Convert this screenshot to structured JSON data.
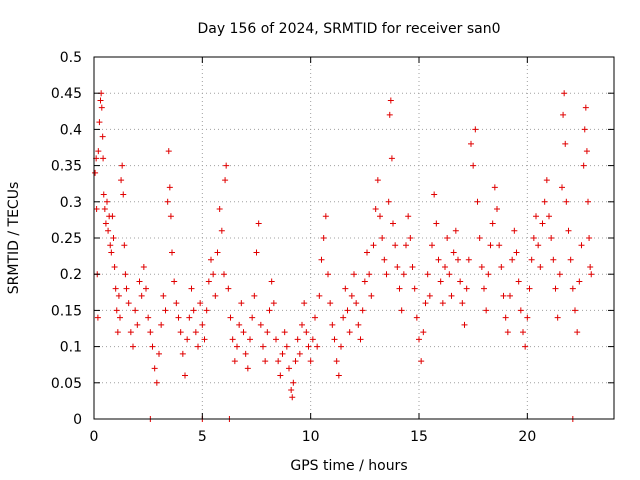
{
  "chart_data": {
    "type": "scatter",
    "title": "Day 156 of 2024, SRMTID for receiver san0",
    "xlabel": "GPS time / hours",
    "ylabel": "SRMTID / TECUs",
    "xlim": [
      0,
      24
    ],
    "ylim": [
      0,
      0.5
    ],
    "x_ticks": [
      0,
      5,
      10,
      15,
      20
    ],
    "x_tick_labels": [
      "0",
      "5",
      "10",
      "15",
      "20"
    ],
    "y_ticks": [
      0,
      0.05,
      0.1,
      0.15,
      0.2,
      0.25,
      0.3,
      0.35,
      0.4,
      0.45,
      0.5
    ],
    "y_tick_labels": [
      "0",
      "0.05",
      "0.1",
      "0.15",
      "0.2",
      "0.25",
      "0.3",
      "0.35",
      "0.4",
      "0.45",
      "0.5"
    ],
    "grid": true,
    "marker": "plus",
    "color": "#e00000",
    "series": [
      {
        "name": "SRMTID",
        "points": [
          [
            0.05,
            0.34
          ],
          [
            0.1,
            0.36
          ],
          [
            0.12,
            0.29
          ],
          [
            0.15,
            0.2
          ],
          [
            0.18,
            0.14
          ],
          [
            0.2,
            0.37
          ],
          [
            0.25,
            0.41
          ],
          [
            0.3,
            0.44
          ],
          [
            0.33,
            0.45
          ],
          [
            0.36,
            0.43
          ],
          [
            0.4,
            0.39
          ],
          [
            0.42,
            0.36
          ],
          [
            0.45,
            0.31
          ],
          [
            0.5,
            0.29
          ],
          [
            0.55,
            0.27
          ],
          [
            0.6,
            0.3
          ],
          [
            0.65,
            0.26
          ],
          [
            0.7,
            0.28
          ],
          [
            0.75,
            0.24
          ],
          [
            0.8,
            0.23
          ],
          [
            0.85,
            0.28
          ],
          [
            0.9,
            0.25
          ],
          [
            0.95,
            0.21
          ],
          [
            1.0,
            0.18
          ],
          [
            1.05,
            0.15
          ],
          [
            1.1,
            0.12
          ],
          [
            1.15,
            0.17
          ],
          [
            1.2,
            0.14
          ],
          [
            1.25,
            0.33
          ],
          [
            1.3,
            0.35
          ],
          [
            1.35,
            0.31
          ],
          [
            1.4,
            0.24
          ],
          [
            1.45,
            0.2
          ],
          [
            1.5,
            0.18
          ],
          [
            1.6,
            0.16
          ],
          [
            1.7,
            0.12
          ],
          [
            1.8,
            0.1
          ],
          [
            1.9,
            0.15
          ],
          [
            2.0,
            0.13
          ],
          [
            2.1,
            0.19
          ],
          [
            2.2,
            0.17
          ],
          [
            2.3,
            0.21
          ],
          [
            2.4,
            0.18
          ],
          [
            2.5,
            0.14
          ],
          [
            2.6,
            0.12
          ],
          [
            2.7,
            0.1
          ],
          [
            2.8,
            0.07
          ],
          [
            2.9,
            0.05
          ],
          [
            3.0,
            0.09
          ],
          [
            3.1,
            0.13
          ],
          [
            3.2,
            0.17
          ],
          [
            3.3,
            0.15
          ],
          [
            3.4,
            0.3
          ],
          [
            3.45,
            0.37
          ],
          [
            3.5,
            0.32
          ],
          [
            3.55,
            0.28
          ],
          [
            3.6,
            0.23
          ],
          [
            3.7,
            0.19
          ],
          [
            3.8,
            0.16
          ],
          [
            3.9,
            0.14
          ],
          [
            4.0,
            0.12
          ],
          [
            4.1,
            0.09
          ],
          [
            4.2,
            0.06
          ],
          [
            4.3,
            0.11
          ],
          [
            4.4,
            0.14
          ],
          [
            4.5,
            0.18
          ],
          [
            4.6,
            0.15
          ],
          [
            4.7,
            0.12
          ],
          [
            4.8,
            0.1
          ],
          [
            4.9,
            0.16
          ],
          [
            5.0,
            0.13
          ],
          [
            5.1,
            0.11
          ],
          [
            5.2,
            0.15
          ],
          [
            5.3,
            0.19
          ],
          [
            5.4,
            0.22
          ],
          [
            5.5,
            0.2
          ],
          [
            5.6,
            0.17
          ],
          [
            5.7,
            0.23
          ],
          [
            5.8,
            0.29
          ],
          [
            5.9,
            0.26
          ],
          [
            6.0,
            0.2
          ],
          [
            6.05,
            0.33
          ],
          [
            6.1,
            0.35
          ],
          [
            6.2,
            0.18
          ],
          [
            6.3,
            0.14
          ],
          [
            6.4,
            0.11
          ],
          [
            6.5,
            0.08
          ],
          [
            6.6,
            0.1
          ],
          [
            6.7,
            0.13
          ],
          [
            6.8,
            0.16
          ],
          [
            6.9,
            0.12
          ],
          [
            7.0,
            0.09
          ],
          [
            7.1,
            0.07
          ],
          [
            7.2,
            0.11
          ],
          [
            7.3,
            0.14
          ],
          [
            7.4,
            0.17
          ],
          [
            7.5,
            0.23
          ],
          [
            7.6,
            0.27
          ],
          [
            7.7,
            0.13
          ],
          [
            7.8,
            0.1
          ],
          [
            7.9,
            0.08
          ],
          [
            8.0,
            0.12
          ],
          [
            8.1,
            0.15
          ],
          [
            8.2,
            0.19
          ],
          [
            8.3,
            0.16
          ],
          [
            8.4,
            0.11
          ],
          [
            8.5,
            0.08
          ],
          [
            8.6,
            0.06
          ],
          [
            8.7,
            0.09
          ],
          [
            8.8,
            0.12
          ],
          [
            8.9,
            0.1
          ],
          [
            9.0,
            0.07
          ],
          [
            9.1,
            0.04
          ],
          [
            9.15,
            0.03
          ],
          [
            9.2,
            0.05
          ],
          [
            9.3,
            0.08
          ],
          [
            9.4,
            0.11
          ],
          [
            9.5,
            0.09
          ],
          [
            9.6,
            0.13
          ],
          [
            9.7,
            0.16
          ],
          [
            9.8,
            0.12
          ],
          [
            9.9,
            0.1
          ],
          [
            10.0,
            0.08
          ],
          [
            10.1,
            0.11
          ],
          [
            10.2,
            0.14
          ],
          [
            10.3,
            0.1
          ],
          [
            10.4,
            0.17
          ],
          [
            10.5,
            0.22
          ],
          [
            10.6,
            0.25
          ],
          [
            10.7,
            0.28
          ],
          [
            10.8,
            0.2
          ],
          [
            10.9,
            0.16
          ],
          [
            11.0,
            0.13
          ],
          [
            11.1,
            0.11
          ],
          [
            11.2,
            0.08
          ],
          [
            11.3,
            0.06
          ],
          [
            11.4,
            0.1
          ],
          [
            11.5,
            0.14
          ],
          [
            11.6,
            0.18
          ],
          [
            11.7,
            0.15
          ],
          [
            11.8,
            0.12
          ],
          [
            11.9,
            0.17
          ],
          [
            12.0,
            0.2
          ],
          [
            12.1,
            0.16
          ],
          [
            12.2,
            0.13
          ],
          [
            12.3,
            0.11
          ],
          [
            12.4,
            0.15
          ],
          [
            12.5,
            0.19
          ],
          [
            12.6,
            0.23
          ],
          [
            12.7,
            0.2
          ],
          [
            12.8,
            0.17
          ],
          [
            12.9,
            0.24
          ],
          [
            13.0,
            0.29
          ],
          [
            13.1,
            0.33
          ],
          [
            13.2,
            0.28
          ],
          [
            13.3,
            0.25
          ],
          [
            13.4,
            0.22
          ],
          [
            13.5,
            0.2
          ],
          [
            13.6,
            0.3
          ],
          [
            13.65,
            0.42
          ],
          [
            13.7,
            0.44
          ],
          [
            13.75,
            0.36
          ],
          [
            13.8,
            0.27
          ],
          [
            13.9,
            0.24
          ],
          [
            14.0,
            0.21
          ],
          [
            14.1,
            0.18
          ],
          [
            14.2,
            0.15
          ],
          [
            14.3,
            0.2
          ],
          [
            14.4,
            0.24
          ],
          [
            14.5,
            0.28
          ],
          [
            14.6,
            0.25
          ],
          [
            14.7,
            0.21
          ],
          [
            14.8,
            0.18
          ],
          [
            14.9,
            0.14
          ],
          [
            15.0,
            0.11
          ],
          [
            15.1,
            0.08
          ],
          [
            15.2,
            0.12
          ],
          [
            15.3,
            0.16
          ],
          [
            15.4,
            0.2
          ],
          [
            15.5,
            0.17
          ],
          [
            15.6,
            0.24
          ],
          [
            15.7,
            0.31
          ],
          [
            15.8,
            0.27
          ],
          [
            15.9,
            0.22
          ],
          [
            16.0,
            0.19
          ],
          [
            16.1,
            0.16
          ],
          [
            16.2,
            0.21
          ],
          [
            16.3,
            0.25
          ],
          [
            16.4,
            0.2
          ],
          [
            16.5,
            0.17
          ],
          [
            16.6,
            0.23
          ],
          [
            16.7,
            0.26
          ],
          [
            16.8,
            0.22
          ],
          [
            16.9,
            0.19
          ],
          [
            17.0,
            0.16
          ],
          [
            17.1,
            0.13
          ],
          [
            17.2,
            0.18
          ],
          [
            17.3,
            0.22
          ],
          [
            17.4,
            0.38
          ],
          [
            17.5,
            0.35
          ],
          [
            17.6,
            0.4
          ],
          [
            17.7,
            0.3
          ],
          [
            17.8,
            0.25
          ],
          [
            17.9,
            0.21
          ],
          [
            18.0,
            0.18
          ],
          [
            18.1,
            0.15
          ],
          [
            18.2,
            0.2
          ],
          [
            18.3,
            0.24
          ],
          [
            18.4,
            0.27
          ],
          [
            18.5,
            0.32
          ],
          [
            18.6,
            0.29
          ],
          [
            18.7,
            0.24
          ],
          [
            18.8,
            0.21
          ],
          [
            18.9,
            0.17
          ],
          [
            19.0,
            0.14
          ],
          [
            19.1,
            0.12
          ],
          [
            19.2,
            0.17
          ],
          [
            19.3,
            0.22
          ],
          [
            19.4,
            0.26
          ],
          [
            19.5,
            0.23
          ],
          [
            19.6,
            0.19
          ],
          [
            19.7,
            0.15
          ],
          [
            19.8,
            0.12
          ],
          [
            19.9,
            0.1
          ],
          [
            20.0,
            0.14
          ],
          [
            20.1,
            0.18
          ],
          [
            20.2,
            0.22
          ],
          [
            20.3,
            0.25
          ],
          [
            20.4,
            0.28
          ],
          [
            20.5,
            0.24
          ],
          [
            20.6,
            0.21
          ],
          [
            20.7,
            0.27
          ],
          [
            20.8,
            0.3
          ],
          [
            20.9,
            0.33
          ],
          [
            21.0,
            0.28
          ],
          [
            21.1,
            0.25
          ],
          [
            21.2,
            0.22
          ],
          [
            21.3,
            0.18
          ],
          [
            21.4,
            0.14
          ],
          [
            21.5,
            0.2
          ],
          [
            21.6,
            0.32
          ],
          [
            21.65,
            0.42
          ],
          [
            21.7,
            0.45
          ],
          [
            21.75,
            0.38
          ],
          [
            21.8,
            0.3
          ],
          [
            21.9,
            0.26
          ],
          [
            22.0,
            0.22
          ],
          [
            22.1,
            0.18
          ],
          [
            22.2,
            0.15
          ],
          [
            22.3,
            0.12
          ],
          [
            22.4,
            0.19
          ],
          [
            22.5,
            0.24
          ],
          [
            22.6,
            0.35
          ],
          [
            22.65,
            0.4
          ],
          [
            22.7,
            0.43
          ],
          [
            22.75,
            0.37
          ],
          [
            22.8,
            0.3
          ],
          [
            22.85,
            0.25
          ],
          [
            22.9,
            0.21
          ],
          [
            22.95,
            0.2
          ],
          [
            2.6,
            0.0
          ],
          [
            5.0,
            0.0
          ],
          [
            6.25,
            0.0
          ],
          [
            22.1,
            0.0
          ]
        ]
      }
    ]
  }
}
